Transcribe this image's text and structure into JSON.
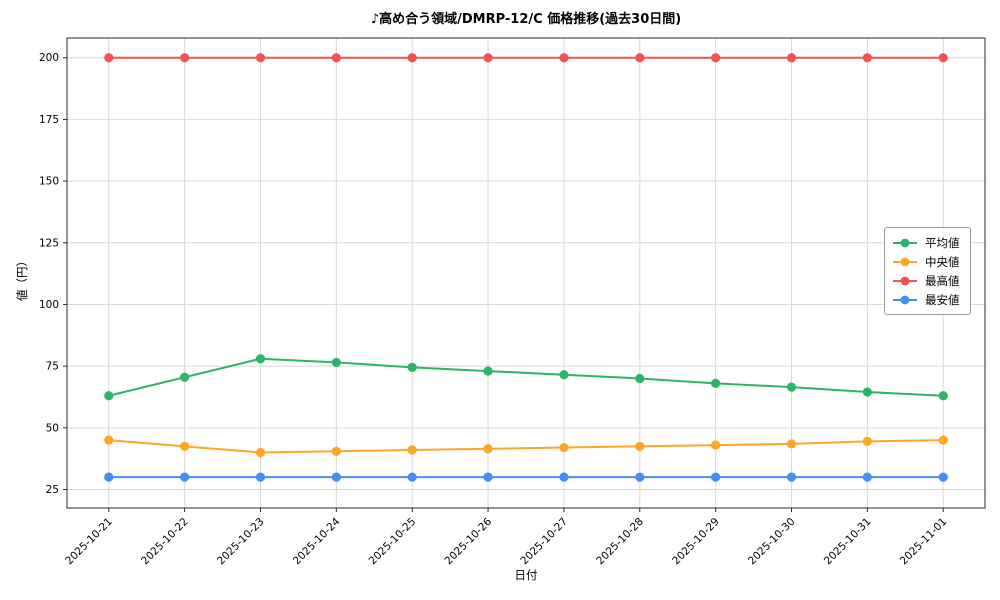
{
  "chart_data": {
    "type": "line",
    "title": "♪高め合う領域/DMRP-12/C 価格推移(過去30日間)",
    "xlabel": "日付",
    "ylabel": "値（円）",
    "categories": [
      "2025-10-21",
      "2025-10-22",
      "2025-10-23",
      "2025-10-24",
      "2025-10-25",
      "2025-10-26",
      "2025-10-27",
      "2025-10-28",
      "2025-10-29",
      "2025-10-30",
      "2025-10-31",
      "2025-11-01"
    ],
    "yticks": [
      25,
      50,
      75,
      100,
      125,
      150,
      175,
      200
    ],
    "ylim": [
      17.5,
      208
    ],
    "grid": true,
    "grid_color": "#d9d9d9",
    "axis_color": "#2b2b2b",
    "legend_position": "center-right",
    "series": [
      {
        "id": "average",
        "name": "平均値",
        "color": "#2db46a",
        "values": [
          63,
          70.5,
          78,
          76.5,
          74.5,
          73,
          71.5,
          70,
          68,
          66.5,
          64.5,
          63
        ]
      },
      {
        "id": "median",
        "name": "中央値",
        "color": "#ffa629",
        "values": [
          45,
          42.5,
          40,
          40.5,
          41,
          41.5,
          42,
          42.5,
          43,
          43.5,
          44.5,
          45
        ]
      },
      {
        "id": "max",
        "name": "最高値",
        "color": "#f45252",
        "values": [
          200,
          200,
          200,
          200,
          200,
          200,
          200,
          200,
          200,
          200,
          200,
          200
        ]
      },
      {
        "id": "min",
        "name": "最安値",
        "color": "#448ef7",
        "values": [
          30,
          30,
          30,
          30,
          30,
          30,
          30,
          30,
          30,
          30,
          30,
          30
        ]
      }
    ]
  }
}
